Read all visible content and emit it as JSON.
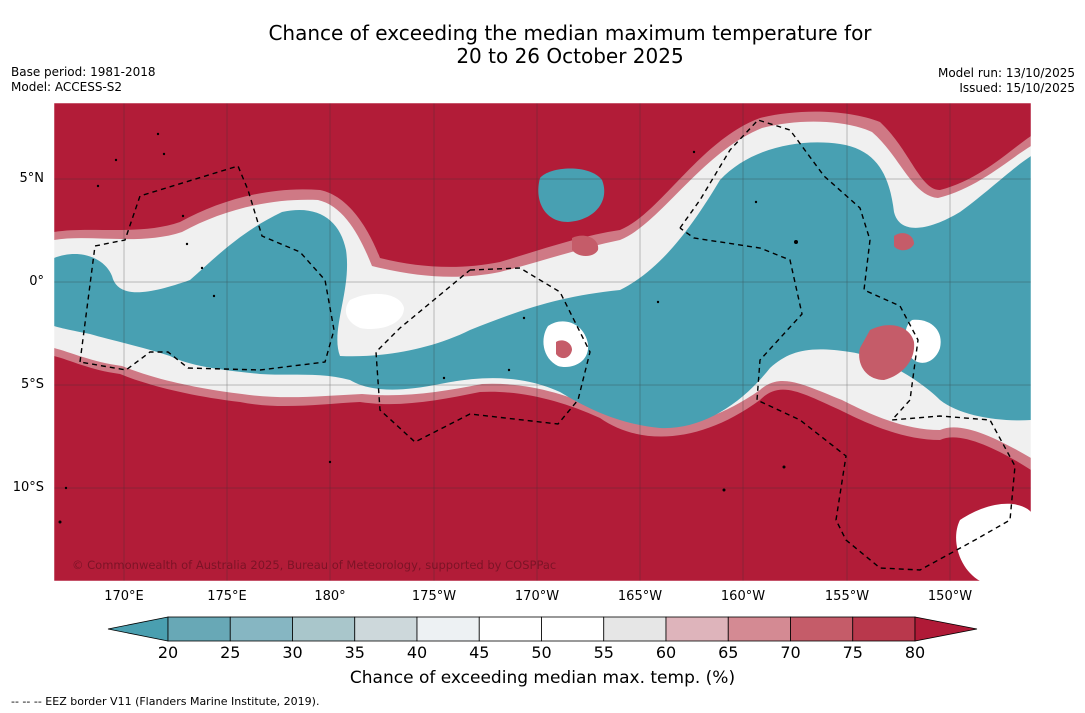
{
  "header": {
    "title_line1": "Chance of exceeding the median maximum temperature for",
    "title_line2": "20 to 26 October 2025",
    "base_period": "Base period: 1981-2018",
    "model": "Model: ACCESS-S2",
    "model_run": "Model run: 13/10/2025",
    "issued": "Issued: 15/10/2025"
  },
  "map": {
    "lat_labels": [
      "5°N",
      "0°",
      "5°S",
      "10°S"
    ],
    "lon_labels": [
      "170°E",
      "175°E",
      "180°",
      "175°W",
      "170°W",
      "165°W",
      "160°W",
      "155°W",
      "150°W"
    ],
    "copyright": "© Commonwealth of Australia 2025, Bureau of Meteorology, supported by COSPPac",
    "colors": {
      "above": "#b21c38",
      "below": "#48a0b2",
      "neutral": "#ffffff",
      "border_line": "#000000"
    }
  },
  "colorbar": {
    "ticks": [
      "20",
      "25",
      "30",
      "35",
      "40",
      "45",
      "50",
      "55",
      "60",
      "65",
      "70",
      "75",
      "80"
    ],
    "colors": [
      "#4a9fb0",
      "#68a8b6",
      "#86b6c2",
      "#a9c6cb",
      "#cdd8db",
      "#edf1f3",
      "#ffffff",
      "#ffffff",
      "#e6e6e6",
      "#deb4bb",
      "#d48a93",
      "#c55c69",
      "#b9384c",
      "#b01a37"
    ],
    "label": "Chance of exceeding median max. temp. (%)"
  },
  "footnote": "--  --  -- EEZ border V11 (Flanders Marine Institute, 2019)."
}
